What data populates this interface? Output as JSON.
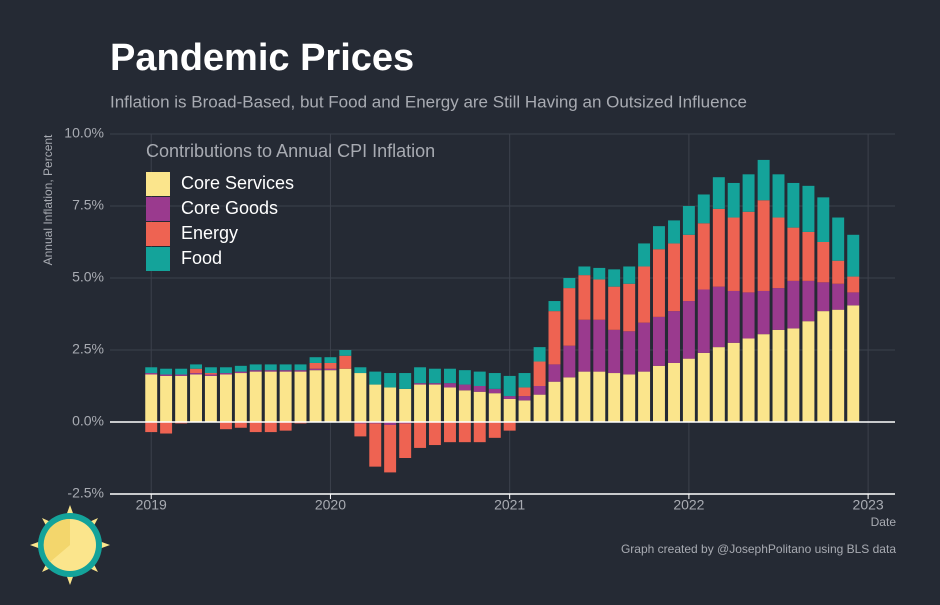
{
  "chart_data": {
    "type": "stacked-bar",
    "title": "Pandemic Prices",
    "subtitle": "Inflation is Broad-Based, but Food and Energy are Still Having an Outsized Influence",
    "y_label": "Annual Inflation, Percent",
    "x_label": "Date",
    "legend_title": "Contributions to Annual CPI Inflation",
    "caption": "Graph created by @JosephPolitano using BLS data",
    "legend": "top-left",
    "grid": true,
    "x": [
      2019.0,
      2019.083,
      2019.167,
      2019.25,
      2019.333,
      2019.417,
      2019.5,
      2019.583,
      2019.667,
      2019.75,
      2019.833,
      2019.917,
      2020.0,
      2020.083,
      2020.167,
      2020.25,
      2020.333,
      2020.417,
      2020.5,
      2020.583,
      2020.667,
      2020.75,
      2020.833,
      2020.917,
      2021.0,
      2021.083,
      2021.167,
      2021.25,
      2021.333,
      2021.417,
      2021.5,
      2021.583,
      2021.667,
      2021.75,
      2021.833,
      2021.917,
      2022.0,
      2022.083,
      2022.167,
      2022.25,
      2022.333,
      2022.417,
      2022.5,
      2022.583,
      2022.667,
      2022.75,
      2022.833,
      2022.917
    ],
    "xlim": [
      2018.77,
      2023.15
    ],
    "xticks": [
      2019,
      2020,
      2021,
      2022,
      2023
    ],
    "ylim": [
      -2.5,
      10
    ],
    "yticks": [
      {
        "value": -2.5,
        "label": "-2.5%"
      },
      {
        "value": 0,
        "label": "0.0%"
      },
      {
        "value": 2.5,
        "label": "2.5%"
      },
      {
        "value": 5,
        "label": "5.0%"
      },
      {
        "value": 7.5,
        "label": "7.5%"
      },
      {
        "value": 10,
        "label": "10.0%"
      }
    ],
    "series": [
      {
        "name": "Core Services",
        "color": "#fbe58c",
        "values": [
          1.65,
          1.6,
          1.6,
          1.65,
          1.6,
          1.65,
          1.7,
          1.75,
          1.75,
          1.75,
          1.75,
          1.8,
          1.8,
          1.85,
          1.7,
          1.3,
          1.2,
          1.15,
          1.3,
          1.3,
          1.2,
          1.1,
          1.05,
          1.0,
          0.8,
          0.75,
          0.95,
          1.4,
          1.55,
          1.75,
          1.75,
          1.7,
          1.65,
          1.75,
          1.95,
          2.05,
          2.2,
          2.4,
          2.6,
          2.75,
          2.9,
          3.05,
          3.2,
          3.25,
          3.5,
          3.85,
          3.9,
          4.05
        ]
      },
      {
        "name": "Core Goods",
        "color": "#9a3a8e",
        "values": [
          0.05,
          0.05,
          0.05,
          0.05,
          0.05,
          0.05,
          0.05,
          0.05,
          0.05,
          0.05,
          0.05,
          0.05,
          0.05,
          0.0,
          -0.05,
          -0.05,
          -0.1,
          -0.05,
          0.05,
          0.05,
          0.15,
          0.2,
          0.2,
          0.15,
          0.1,
          0.15,
          0.3,
          0.6,
          1.1,
          1.8,
          1.8,
          1.5,
          1.5,
          1.7,
          1.7,
          1.8,
          2.0,
          2.2,
          2.1,
          1.8,
          1.6,
          1.5,
          1.45,
          1.65,
          1.4,
          1.0,
          0.9,
          0.45
        ]
      },
      {
        "name": "Energy",
        "color": "#ee6352",
        "values": [
          -0.35,
          -0.4,
          -0.05,
          0.15,
          0.05,
          -0.25,
          -0.2,
          -0.35,
          -0.35,
          -0.3,
          -0.05,
          0.2,
          0.2,
          0.45,
          -0.45,
          -1.5,
          -1.65,
          -1.2,
          -0.9,
          -0.8,
          -0.7,
          -0.7,
          -0.7,
          -0.55,
          -0.3,
          0.3,
          0.85,
          1.85,
          2.0,
          1.55,
          1.4,
          1.5,
          1.65,
          1.95,
          2.35,
          2.35,
          2.3,
          2.3,
          2.7,
          2.55,
          2.8,
          3.15,
          2.45,
          1.85,
          1.7,
          1.4,
          0.8,
          0.55
        ]
      },
      {
        "name": "Food",
        "color": "#14a39a",
        "values": [
          0.2,
          0.2,
          0.2,
          0.15,
          0.2,
          0.2,
          0.2,
          0.2,
          0.2,
          0.2,
          0.2,
          0.2,
          0.2,
          0.2,
          0.2,
          0.45,
          0.5,
          0.55,
          0.55,
          0.5,
          0.5,
          0.5,
          0.5,
          0.55,
          0.7,
          0.5,
          0.5,
          0.35,
          0.35,
          0.3,
          0.4,
          0.6,
          0.6,
          0.8,
          0.8,
          0.8,
          1.0,
          1.0,
          1.1,
          1.2,
          1.3,
          1.4,
          1.5,
          1.55,
          1.6,
          1.55,
          1.5,
          1.45
        ]
      }
    ]
  }
}
